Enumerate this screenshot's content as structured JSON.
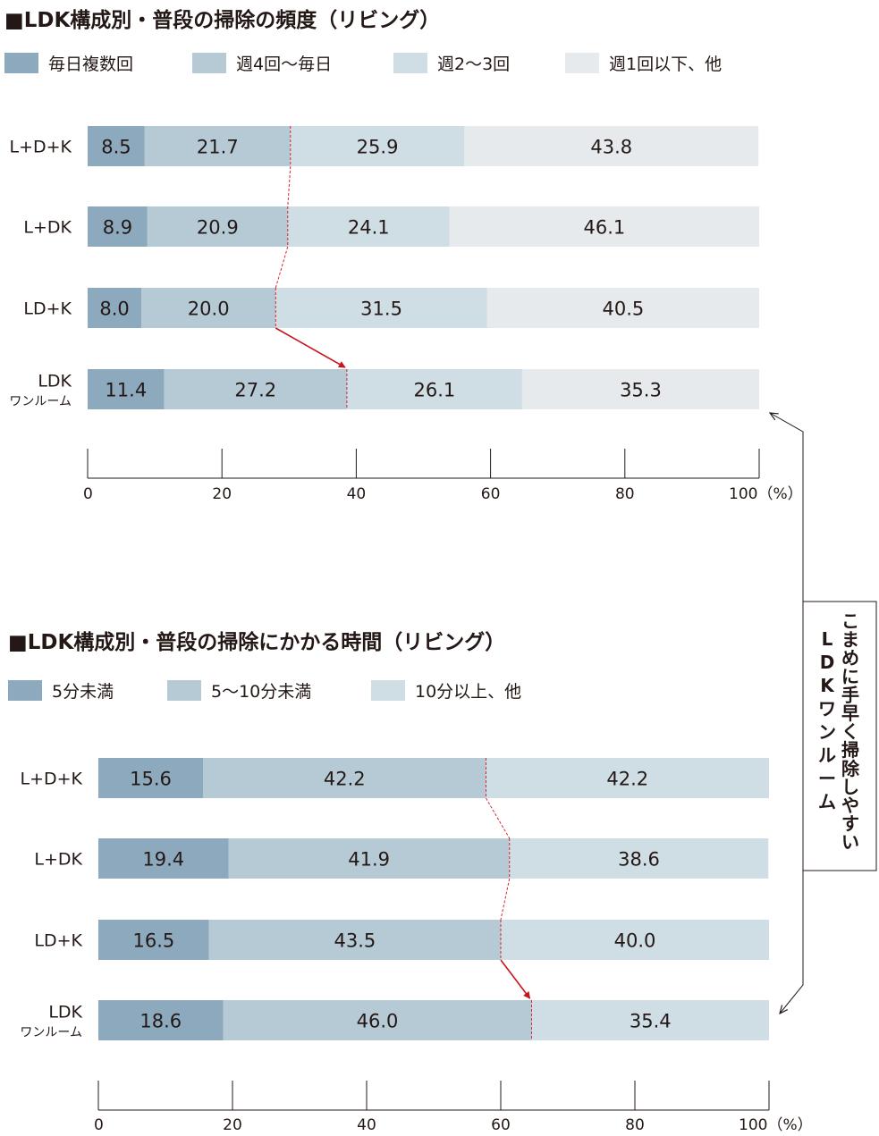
{
  "colors": {
    "seg1": "#8da9bd",
    "seg2": "#b6cad6",
    "seg3": "#cfdde4",
    "seg4": "#e6eaec",
    "dashed": "#d9262c",
    "arrow": "#c8161d",
    "text": "#231815"
  },
  "callout": {
    "lines": [
      "こまめに手早く掃除しやすい",
      "LDKワンルーム"
    ]
  },
  "chart_data": [
    {
      "type": "bar",
      "orientation": "horizontal-stacked-100",
      "title": "■LDK構成別・普段の掃除の頻度（リビング）",
      "categories": [
        "L+D+K",
        "L+DK",
        "LD+K",
        "LDK\nワンルーム"
      ],
      "category_lines": [
        [
          "L+D+K"
        ],
        [
          "L+DK"
        ],
        [
          "LD+K"
        ],
        [
          "LDK",
          "ワンルーム"
        ]
      ],
      "series": [
        {
          "name": "毎日複数回",
          "values": [
            8.5,
            8.9,
            8.0,
            11.4
          ]
        },
        {
          "name": "週4回〜毎日",
          "values": [
            21.7,
            20.9,
            20.0,
            27.2
          ]
        },
        {
          "name": "週2〜3回",
          "values": [
            25.9,
            24.1,
            31.5,
            26.1
          ]
        },
        {
          "name": "週1回以下、他",
          "values": [
            43.8,
            46.1,
            40.5,
            35.3
          ]
        }
      ],
      "xlim": [
        0,
        100
      ],
      "xticks": [
        "0",
        "20",
        "40",
        "60",
        "80",
        "100（%）"
      ],
      "legend": "top-left"
    },
    {
      "type": "bar",
      "orientation": "horizontal-stacked-100",
      "title": "■LDK構成別・普段の掃除にかかる時間（リビング）",
      "categories": [
        "L+D+K",
        "L+DK",
        "LD+K",
        "LDK\nワンルーム"
      ],
      "category_lines": [
        [
          "L+D+K"
        ],
        [
          "L+DK"
        ],
        [
          "LD+K"
        ],
        [
          "LDK",
          "ワンルーム"
        ]
      ],
      "series": [
        {
          "name": "5分未満",
          "values": [
            15.6,
            19.4,
            16.5,
            18.6
          ]
        },
        {
          "name": "5〜10分未満",
          "values": [
            42.2,
            41.9,
            43.5,
            46.0
          ]
        },
        {
          "name": "10分以上、他",
          "values": [
            42.2,
            38.6,
            40.0,
            35.4
          ]
        }
      ],
      "xlim": [
        0,
        100
      ],
      "xticks": [
        "0",
        "20",
        "40",
        "60",
        "80",
        "100（%）"
      ],
      "legend": "top-left"
    }
  ]
}
